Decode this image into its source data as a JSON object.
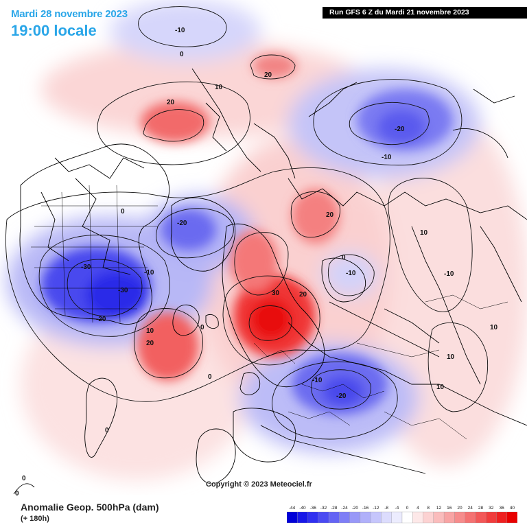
{
  "header": {
    "date": "Mardi 28 novembre 2023",
    "time": "19:00 locale",
    "run": "Run GFS 6 Z du Mardi 21 novembre 2023"
  },
  "footer": {
    "field": "Anomalie Geop. 500hPa (dam)",
    "lead": "(+ 180h)",
    "copyright": "Copyright © 2023 Meteociel.fr"
  },
  "scale": {
    "values": [
      "-44",
      "-40",
      "-36",
      "-32",
      "-28",
      "-24",
      "-20",
      "-16",
      "-12",
      "-8",
      "-4",
      "0",
      "4",
      "8",
      "12",
      "16",
      "20",
      "24",
      "28",
      "32",
      "36",
      "40"
    ],
    "colors": [
      "#0000d8",
      "#1818e8",
      "#3030f0",
      "#4a4af2",
      "#6464f4",
      "#7e7ef6",
      "#9898f8",
      "#b0b0fa",
      "#c6c6fc",
      "#dcdcfd",
      "#ececfe",
      "#ffffff",
      "#fde8e8",
      "#fcd2d2",
      "#fabcbc",
      "#f8a4a4",
      "#f68c8c",
      "#f47272",
      "#f25858",
      "#f03c3c",
      "#ee2020",
      "#e80000"
    ]
  },
  "contour_labels": [
    {
      "text": "-10",
      "role": "neg"
    },
    {
      "text": "0",
      "role": "zero"
    },
    {
      "text": "20",
      "role": "pos"
    },
    {
      "text": "10",
      "role": "pos"
    },
    {
      "text": "20",
      "role": "pos"
    },
    {
      "text": "-20",
      "role": "neg"
    },
    {
      "text": "-10",
      "role": "neg"
    },
    {
      "text": "0",
      "role": "zero"
    },
    {
      "text": "-20",
      "role": "neg"
    },
    {
      "text": "-30",
      "role": "neg"
    },
    {
      "text": "-30",
      "role": "neg"
    },
    {
      "text": "-10",
      "role": "neg"
    },
    {
      "text": "-20",
      "role": "neg"
    },
    {
      "text": "20",
      "role": "pos"
    },
    {
      "text": "10",
      "role": "pos"
    },
    {
      "text": "20",
      "role": "pos"
    },
    {
      "text": "30",
      "role": "pos"
    },
    {
      "text": "20",
      "role": "pos"
    },
    {
      "text": "0",
      "role": "zero"
    },
    {
      "text": "-10",
      "role": "neg"
    },
    {
      "text": "10",
      "role": "pos"
    },
    {
      "text": "-10",
      "role": "neg"
    },
    {
      "text": "10",
      "role": "pos"
    },
    {
      "text": "10",
      "role": "pos"
    },
    {
      "text": "-10",
      "role": "neg"
    },
    {
      "text": "-20",
      "role": "neg"
    },
    {
      "text": "10",
      "role": "pos"
    },
    {
      "text": "0",
      "role": "zero"
    },
    {
      "text": "0",
      "role": "zero"
    },
    {
      "text": "0",
      "role": "zero"
    },
    {
      "text": "0",
      "role": "zero"
    },
    {
      "text": "0",
      "role": "zero"
    }
  ]
}
